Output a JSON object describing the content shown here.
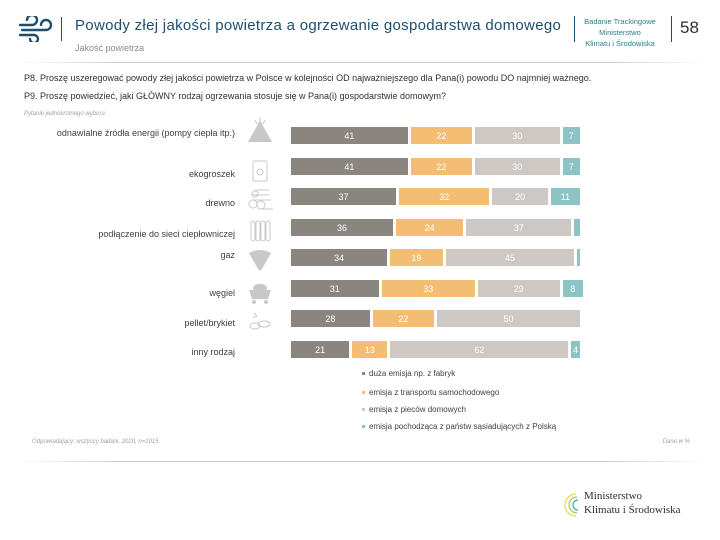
{
  "header": {
    "title": "Powody złej jakości powietrza a ogrzewanie gospodarstwa domowego",
    "subtitle": "Jakość powietrza",
    "badge_lines": [
      "Badanie Trackingowe",
      "Ministerstwo",
      "Klimatu i Środowiska"
    ],
    "page_number": "58"
  },
  "questions": {
    "p8": "P8. Proszę uszeregować powody złej jakości powietrza w Polsce w kolejności OD najważniejszego dla Pana(i) powodu DO najmniej ważnego.",
    "p9": "P9. Proszę powiedzieć, jaki GŁÓWNY rodzaj ogrzewania stosuje się w Pana(i) gospodarstwie domowym?",
    "hint": "Pytanie jednokrotnego wyboru."
  },
  "chart_data": {
    "type": "bar",
    "orientation": "horizontal",
    "stacked": true,
    "percent": true,
    "title": "",
    "xlabel": "",
    "ylabel": "",
    "xlim": [
      0,
      100
    ],
    "grid": false,
    "legend_position": "bottom",
    "categories": [
      "odnawialne źródła energii (pompy ciepła itp.)",
      "ekogroszek",
      "drewno",
      "podłączenie do sieci ciepłowniczej",
      "gaz",
      "węgiel",
      "pellet/brykiet",
      "inny rodzaj"
    ],
    "category_icons": [
      "renewable-energy-icon",
      "eco-pea-coal-bag-icon",
      "firewood-icon",
      "radiator-icon",
      "gas-flame-icon",
      "coal-cart-icon",
      "pellet-icon",
      "none"
    ],
    "series": [
      {
        "name": "duża emisja np. z fabryk",
        "color": "#8b8580",
        "values": [
          41,
          41,
          37,
          36,
          34,
          31,
          28,
          21
        ]
      },
      {
        "name": "emisja z transportu samochodowego",
        "color": "#f3bd73",
        "values": [
          22,
          22,
          32,
          24,
          19,
          33,
          22,
          13
        ]
      },
      {
        "name": "emisja z pieców domowych",
        "color": "#cdc8c3",
        "values": [
          30,
          30,
          20,
          37,
          45,
          29,
          50,
          62
        ]
      },
      {
        "name": "emisja pochodząca z państw sąsiadujących z Polską",
        "color": "#8cc4c6",
        "values": [
          7,
          7,
          11,
          3,
          2,
          8,
          0,
          4
        ]
      }
    ],
    "hidden_labels_below": 3
  },
  "footer": {
    "base_note": "Odpowiadający: wszyscy badani, 2020, n=1015.",
    "source_note": "Dane w %",
    "ministry_lines": [
      "Ministerstwo",
      "Klimatu i Środowiska"
    ]
  }
}
